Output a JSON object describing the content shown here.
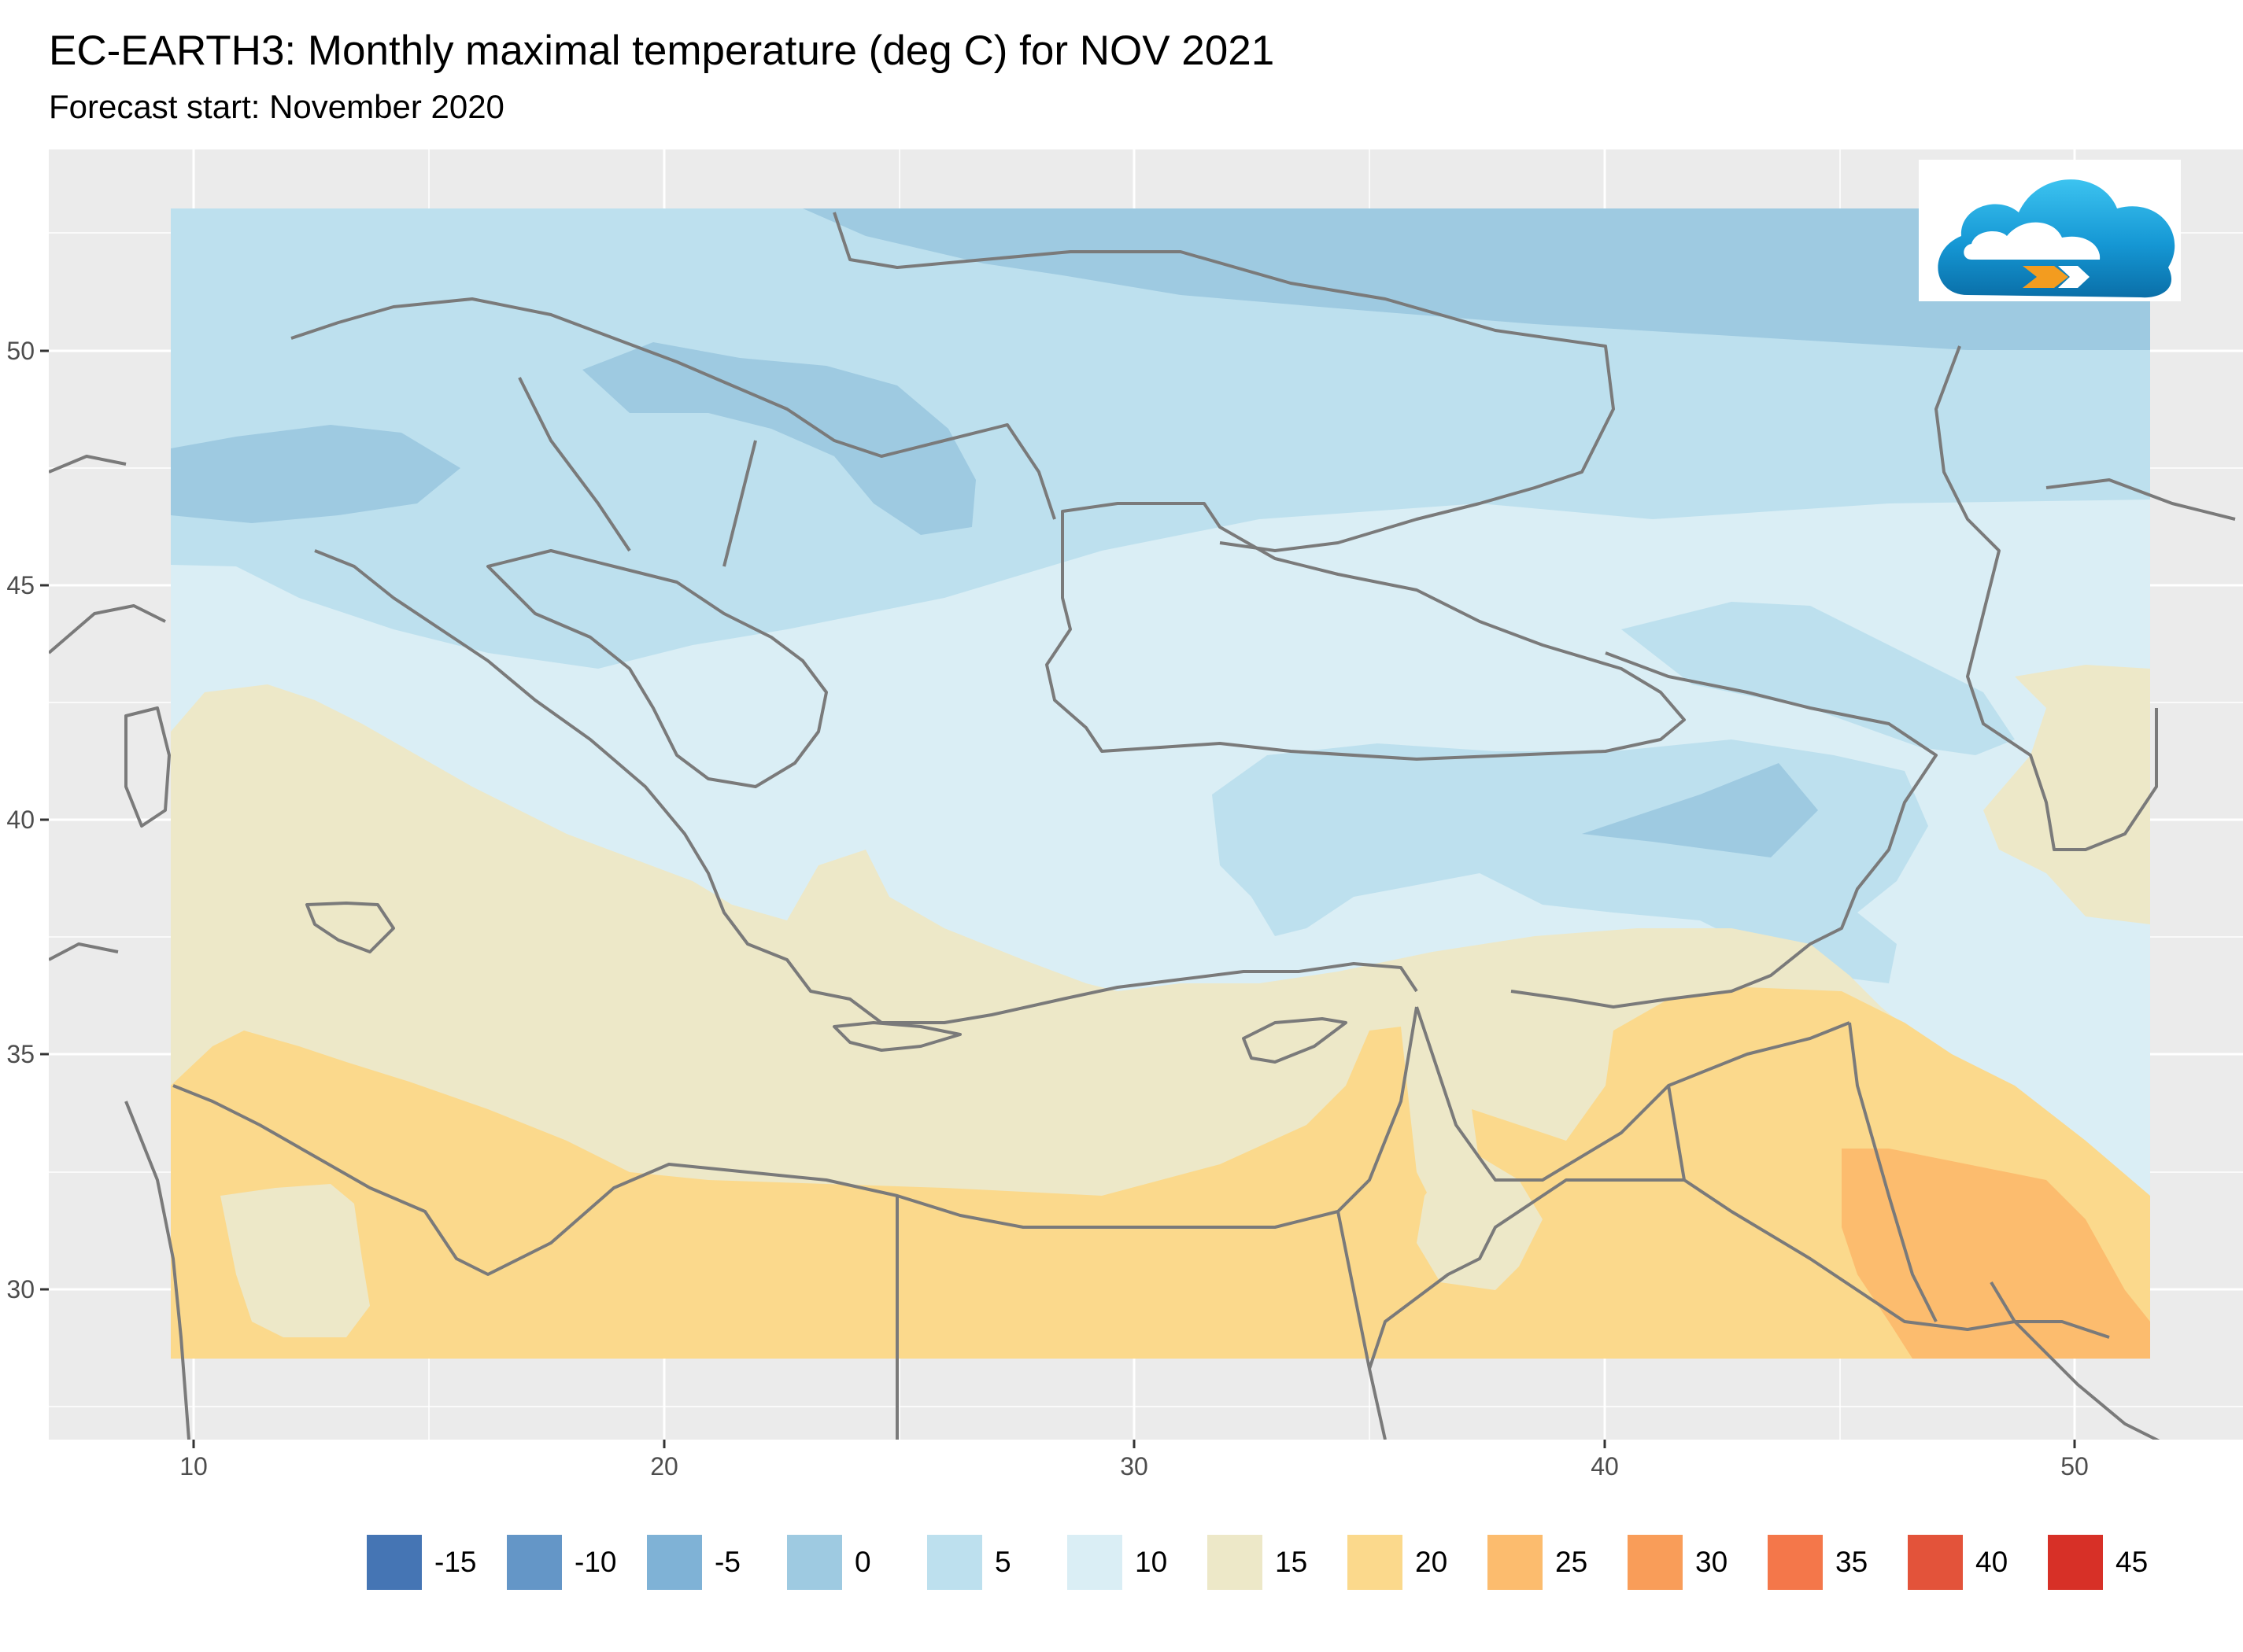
{
  "title": "EC-EARTH3: Monthly maximal temperature (deg C) for NOV 2021",
  "subtitle": "Forecast start: November 2020",
  "map": {
    "lon_range": [
      6.8,
      53.3
    ],
    "lat_range": [
      26.9,
      53.7
    ],
    "data_lon_range": [
      9.5,
      51.7
    ],
    "data_lat_range": [
      28.5,
      53.0
    ],
    "x_ticks": [
      "10",
      "20",
      "30",
      "40",
      "50"
    ],
    "y_ticks": [
      "50",
      "45",
      "40",
      "35",
      "30"
    ],
    "background_color": "#ebebeb",
    "gridline_color": "#ffffff",
    "border_color": "#7a7a7a"
  },
  "legend": {
    "items": [
      {
        "label": "-15",
        "color": "#4575b4"
      },
      {
        "label": "-10",
        "color": "#6496c7"
      },
      {
        "label": "-5",
        "color": "#7fb2d6"
      },
      {
        "label": "0",
        "color": "#9ecae1"
      },
      {
        "label": "5",
        "color": "#bde0ee"
      },
      {
        "label": "10",
        "color": "#daeef5"
      },
      {
        "label": "15",
        "color": "#ede8c8"
      },
      {
        "label": "20",
        "color": "#fbd98c"
      },
      {
        "label": "25",
        "color": "#fcbc6e"
      },
      {
        "label": "30",
        "color": "#f99d59"
      },
      {
        "label": "35",
        "color": "#f4774a"
      },
      {
        "label": "40",
        "color": "#e3533a"
      },
      {
        "label": "45",
        "color": "#d73027"
      }
    ]
  },
  "logo": {
    "icon": "cloud-logo-icon",
    "colors": [
      "#1aa3dd",
      "#0a6fa8",
      "#f39c1f"
    ]
  }
}
